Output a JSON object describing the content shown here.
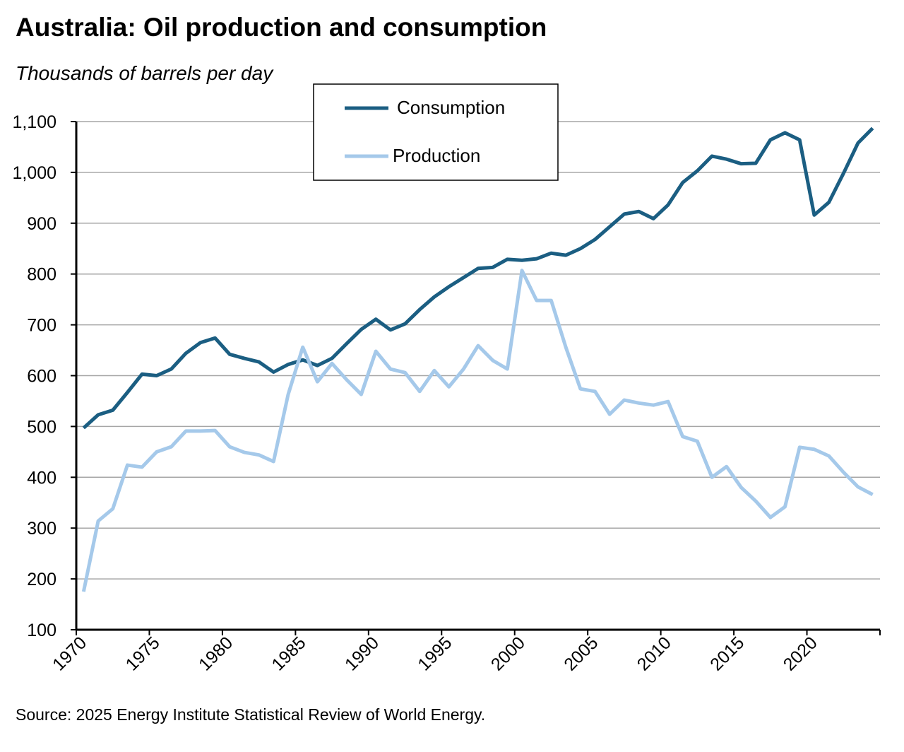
{
  "chart_data": {
    "type": "line",
    "title": "Australia: Oil production and consumption",
    "subtitle": "Thousands of barrels per day",
    "source": "Source: 2025 Energy Institute Statistical Review of World Energy.",
    "categories": [
      "1970",
      null,
      null,
      null,
      null,
      "1975",
      null,
      null,
      null,
      null,
      "1980",
      null,
      null,
      null,
      null,
      "1985",
      null,
      null,
      null,
      null,
      "1990",
      null,
      null,
      null,
      null,
      "1995",
      null,
      null,
      null,
      null,
      "2000",
      null,
      null,
      null,
      null,
      "2005",
      null,
      null,
      null,
      null,
      "2010",
      null,
      null,
      null,
      null,
      "2015",
      null,
      null,
      null,
      null,
      "2020",
      null,
      null,
      null,
      null
    ],
    "series": [
      {
        "name": "Consumption",
        "color": "#1b5e82",
        "values": [
          497,
          523,
          532,
          567,
          603,
          600,
          613,
          644,
          665,
          674,
          642,
          634,
          627,
          607,
          622,
          631,
          620,
          634,
          663,
          691,
          711,
          690,
          702,
          730,
          755,
          775,
          793,
          811,
          813,
          829,
          827,
          830,
          841,
          837,
          850,
          868,
          893,
          918,
          923,
          909,
          936,
          980,
          1003,
          1032,
          1026,
          1017,
          1018,
          1064,
          1078,
          1064,
          916,
          941,
          998,
          1058,
          1087
        ]
      },
      {
        "name": "Production",
        "color": "#a5c9ea",
        "values": [
          175,
          314,
          338,
          424,
          420,
          450,
          460,
          491,
          491,
          492,
          460,
          449,
          444,
          431,
          563,
          656,
          588,
          624,
          592,
          563,
          648,
          613,
          606,
          569,
          610,
          578,
          613,
          659,
          630,
          613,
          807,
          748,
          748,
          656,
          574,
          569,
          524,
          552,
          546,
          542,
          549,
          480,
          471,
          400,
          421,
          380,
          353,
          321,
          342,
          459,
          455,
          442,
          410,
          381,
          366
        ]
      }
    ],
    "ylim": [
      100,
      1100
    ],
    "yticks": [
      100,
      200,
      300,
      400,
      500,
      600,
      700,
      800,
      900,
      {
        "value": 1000,
        "label": "1,000"
      },
      {
        "value": 1100,
        "label": "1,100"
      }
    ],
    "grid": true,
    "legend": "top"
  }
}
